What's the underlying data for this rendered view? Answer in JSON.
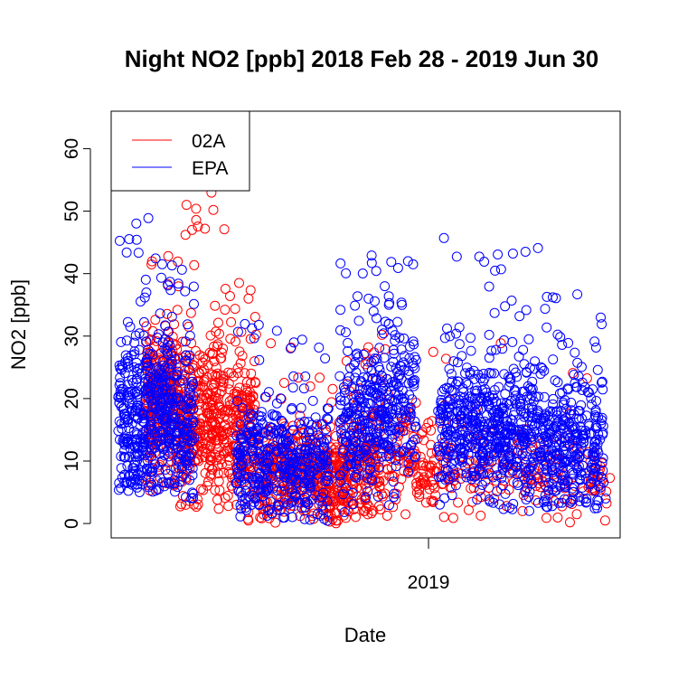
{
  "chart_data": {
    "type": "scatter",
    "title": "Night NO2 [ppb] 2018 Feb 28 - 2019 Jun 30",
    "xlabel": "Date",
    "ylabel": "NO2 [ppb]",
    "xlim": [
      "2018-02-22",
      "2019-07-09"
    ],
    "ylim": [
      -2.3,
      66
    ],
    "x_ticks": [
      {
        "value": "2019-01-01",
        "label": "2019"
      }
    ],
    "y_ticks": [
      0,
      10,
      20,
      30,
      40,
      50,
      60
    ],
    "grid": false,
    "legend": {
      "position": "top-left"
    },
    "marker": "open-circle",
    "series": [
      {
        "name": "02A",
        "color": "#ff0000",
        "segments": [
          {
            "start": "2018-03-28",
            "end": "2018-04-30",
            "mean": 19,
            "sd": 9,
            "min": 0,
            "max": 45,
            "count": 260,
            "seed": 11
          },
          {
            "start": "2018-05-01",
            "end": "2018-06-15",
            "mean": 17,
            "sd": 10,
            "min": 0,
            "max": 54,
            "count": 320,
            "seed": 12
          },
          {
            "start": "2018-06-15",
            "end": "2018-07-15",
            "mean": 15,
            "sd": 9,
            "min": 0,
            "max": 40,
            "count": 180,
            "seed": 13
          },
          {
            "start": "2018-07-15",
            "end": "2018-09-15",
            "mean": 8,
            "sd": 6,
            "min": 0,
            "max": 30,
            "count": 260,
            "seed": 14
          },
          {
            "start": "2018-09-15",
            "end": "2018-10-15",
            "mean": 7,
            "sd": 6,
            "min": 0,
            "max": 26,
            "count": 160,
            "seed": 15
          },
          {
            "start": "2018-10-15",
            "end": "2018-11-15",
            "mean": 9,
            "sd": 7,
            "min": 0,
            "max": 30,
            "count": 140,
            "seed": 16
          },
          {
            "start": "2018-11-15",
            "end": "2019-01-10",
            "mean": 10,
            "sd": 7,
            "min": 0,
            "max": 32,
            "count": 120,
            "seed": 17
          },
          {
            "start": "2019-01-10",
            "end": "2019-04-15",
            "mean": 9,
            "sd": 6,
            "min": 0,
            "max": 30,
            "count": 110,
            "seed": 18
          },
          {
            "start": "2019-04-15",
            "end": "2019-06-30",
            "mean": 7,
            "sd": 5,
            "min": 0,
            "max": 26,
            "count": 80,
            "seed": 19
          }
        ]
      },
      {
        "name": "EPA",
        "color": "#0000ff",
        "segments": [
          {
            "start": "2018-03-01",
            "end": "2018-03-25",
            "mean": 16,
            "sd": 11,
            "min": 5,
            "max": 56,
            "count": 180,
            "seed": 21
          },
          {
            "start": "2018-03-25",
            "end": "2018-04-25",
            "mean": 17,
            "sd": 10,
            "min": 5,
            "max": 52,
            "count": 240,
            "seed": 22
          },
          {
            "start": "2018-04-25",
            "end": "2018-05-15",
            "mean": 15,
            "sd": 10,
            "min": 4,
            "max": 48,
            "count": 120,
            "seed": 23
          },
          {
            "start": "2018-06-25",
            "end": "2018-08-05",
            "mean": 10,
            "sd": 7,
            "min": 1,
            "max": 33,
            "count": 180,
            "seed": 24
          },
          {
            "start": "2018-08-05",
            "end": "2018-09-25",
            "mean": 9,
            "sd": 7,
            "min": 0,
            "max": 30,
            "count": 220,
            "seed": 25
          },
          {
            "start": "2018-10-05",
            "end": "2018-11-05",
            "mean": 15,
            "sd": 9,
            "min": 1,
            "max": 42,
            "count": 160,
            "seed": 26
          },
          {
            "start": "2018-11-05",
            "end": "2018-12-20",
            "mean": 19,
            "sd": 10,
            "min": 1,
            "max": 43,
            "count": 220,
            "seed": 27
          },
          {
            "start": "2019-01-10",
            "end": "2019-02-25",
            "mean": 15,
            "sd": 9,
            "min": 3,
            "max": 49,
            "count": 240,
            "seed": 28
          },
          {
            "start": "2019-02-25",
            "end": "2019-04-25",
            "mean": 14,
            "sd": 9,
            "min": 2,
            "max": 46,
            "count": 320,
            "seed": 29
          },
          {
            "start": "2019-04-25",
            "end": "2019-06-25",
            "mean": 12,
            "sd": 8,
            "min": 2,
            "max": 37,
            "count": 300,
            "seed": 30
          }
        ]
      }
    ]
  }
}
